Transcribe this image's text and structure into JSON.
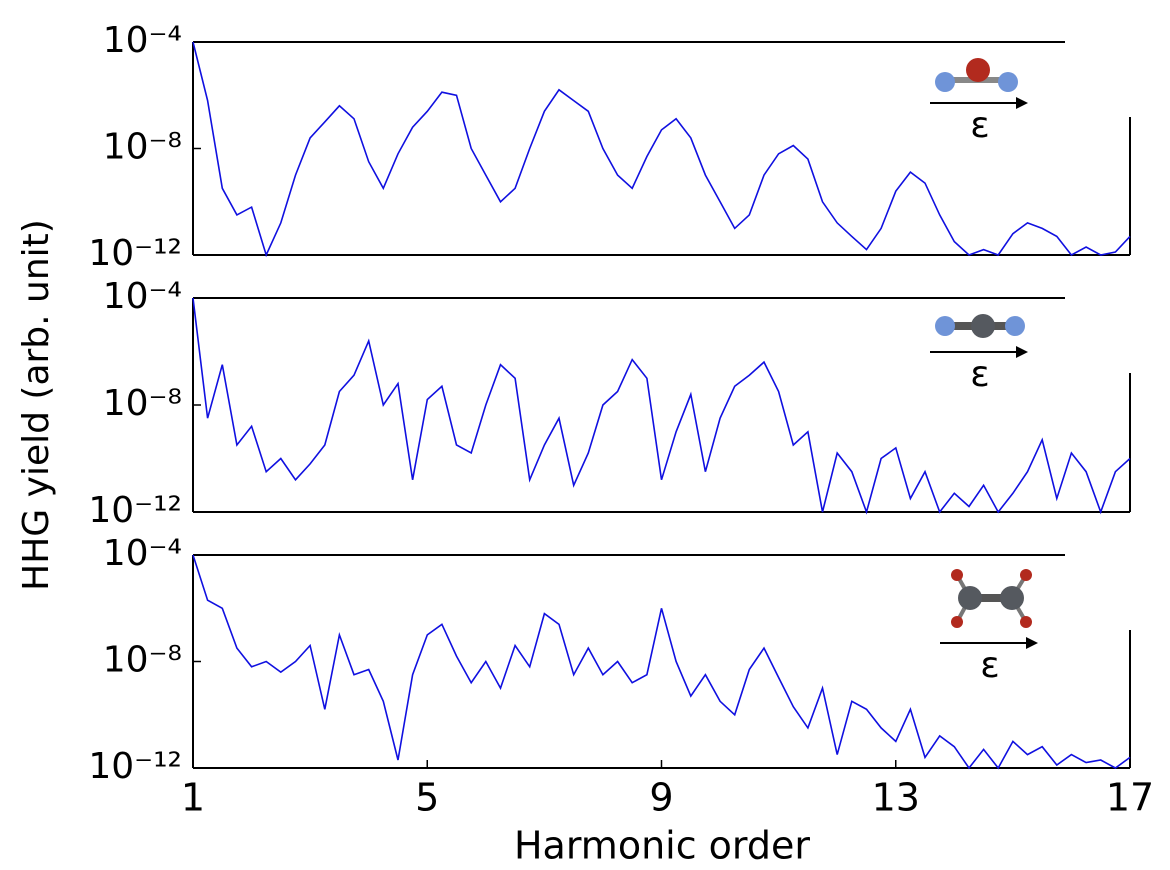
{
  "chart_data": [
    {
      "type": "line",
      "log_y": true,
      "color": "#1010e0",
      "annotation": "ε",
      "xlim": [
        1,
        17
      ],
      "ylim": [
        1e-12,
        0.0001
      ],
      "yticks": [
        {
          "value": 0.0001,
          "label": "10⁻⁴"
        },
        {
          "value": 1e-08,
          "label": "10⁻⁸"
        },
        {
          "value": 1e-12,
          "label": "10⁻¹²"
        }
      ],
      "x": [
        1,
        1.25,
        1.5,
        1.75,
        2,
        2.25,
        2.5,
        2.75,
        3,
        3.25,
        3.5,
        3.75,
        4,
        4.25,
        4.5,
        4.75,
        5,
        5.25,
        5.5,
        5.75,
        6,
        6.25,
        6.5,
        6.75,
        7,
        7.25,
        7.5,
        7.75,
        8,
        8.25,
        8.5,
        8.75,
        9,
        9.25,
        9.5,
        9.75,
        10,
        10.25,
        10.5,
        10.75,
        11,
        11.25,
        11.5,
        11.75,
        12,
        12.25,
        12.5,
        12.75,
        13,
        13.25,
        13.5,
        13.75,
        14,
        14.25,
        14.5,
        14.75,
        15,
        15.25,
        15.5,
        15.75,
        16,
        16.25,
        16.5,
        16.75,
        17
      ],
      "values": [
        0.0001,
        6.3e-07,
        3.2e-10,
        3.2e-11,
        6.3e-11,
        1e-12,
        1.6e-11,
        1e-09,
        2.5e-08,
        1e-07,
        4e-07,
        1.3e-07,
        3.2e-09,
        3.2e-10,
        6.3e-09,
        6.3e-08,
        2.5e-07,
        1.3e-06,
        1e-06,
        1e-08,
        1e-09,
        1e-10,
        3.2e-10,
        1e-08,
        2.5e-07,
        1.6e-06,
        6.3e-07,
        2.5e-07,
        1e-08,
        1e-09,
        3.2e-10,
        5e-09,
        5e-08,
        1.3e-07,
        2.5e-08,
        1e-09,
        1e-10,
        1e-11,
        3.2e-11,
        1e-09,
        6.3e-09,
        1.3e-08,
        4e-09,
        1e-10,
        1.6e-11,
        5e-12,
        1.6e-12,
        1e-11,
        2.5e-10,
        1.3e-09,
        5e-10,
        3.2e-11,
        3.2e-12,
        1e-12,
        1.6e-12,
        1e-12,
        6.3e-12,
        1.6e-11,
        1e-11,
        5e-12,
        1e-12,
        2e-12,
        1e-12,
        1.3e-12,
        5e-12
      ]
    },
    {
      "type": "line",
      "log_y": true,
      "color": "#1010e0",
      "annotation": "ε",
      "ylabel": "HHG yield (arb. unit)",
      "xlim": [
        1,
        17
      ],
      "ylim": [
        1e-12,
        0.0001
      ],
      "yticks": [
        {
          "value": 0.0001,
          "label": "10⁻⁴"
        },
        {
          "value": 1e-08,
          "label": "10⁻⁸"
        },
        {
          "value": 1e-12,
          "label": "10⁻¹²"
        }
      ],
      "x": [
        1,
        1.25,
        1.5,
        1.75,
        2,
        2.25,
        2.5,
        2.75,
        3,
        3.25,
        3.5,
        3.75,
        4,
        4.25,
        4.5,
        4.75,
        5,
        5.25,
        5.5,
        5.75,
        6,
        6.25,
        6.5,
        6.75,
        7,
        7.25,
        7.5,
        7.75,
        8,
        8.25,
        8.5,
        8.75,
        9,
        9.25,
        9.5,
        9.75,
        10,
        10.25,
        10.5,
        10.75,
        11,
        11.25,
        11.5,
        11.75,
        12,
        12.25,
        12.5,
        12.75,
        13,
        13.25,
        13.5,
        13.75,
        14,
        14.25,
        14.5,
        14.75,
        15,
        15.25,
        15.5,
        15.75,
        16,
        16.25,
        16.5,
        16.75,
        17
      ],
      "values": [
        0.0001,
        3.2e-09,
        3.2e-07,
        3.2e-10,
        1.6e-09,
        3.2e-11,
        1e-10,
        1.6e-11,
        6.3e-11,
        3.2e-10,
        3.2e-08,
        1.3e-07,
        2.5e-06,
        1e-08,
        6.3e-08,
        1.6e-11,
        1.6e-08,
        5e-08,
        3.2e-10,
        1.6e-10,
        1e-08,
        3.2e-07,
        1e-07,
        1.6e-11,
        3.2e-10,
        3.2e-09,
        1e-11,
        1.6e-10,
        1e-08,
        3.2e-08,
        5e-07,
        1e-07,
        1.6e-11,
        1e-09,
        2.5e-08,
        3.2e-11,
        3.2e-09,
        5e-08,
        1.3e-07,
        4e-07,
        3.2e-08,
        3.2e-10,
        1e-09,
        1e-12,
        1.6e-10,
        3.2e-11,
        1e-12,
        1e-10,
        2.5e-10,
        3.2e-12,
        3.2e-11,
        1e-12,
        5e-12,
        1.6e-12,
        1e-11,
        1e-12,
        5e-12,
        3.2e-11,
        5e-10,
        3.2e-12,
        1.6e-10,
        3.2e-11,
        1e-12,
        3.2e-11,
        1e-10
      ]
    },
    {
      "type": "line",
      "log_y": true,
      "color": "#1010e0",
      "annotation": "ε",
      "xlabel": "Harmonic order",
      "xlim": [
        1,
        17
      ],
      "ylim": [
        1e-12,
        0.0001
      ],
      "xticks": [
        1,
        5,
        9,
        13,
        17
      ],
      "yticks": [
        {
          "value": 0.0001,
          "label": "10⁻⁴"
        },
        {
          "value": 1e-08,
          "label": "10⁻⁸"
        },
        {
          "value": 1e-12,
          "label": "10⁻¹²"
        }
      ],
      "x": [
        1,
        1.25,
        1.5,
        1.75,
        2,
        2.25,
        2.5,
        2.75,
        3,
        3.25,
        3.5,
        3.75,
        4,
        4.25,
        4.5,
        4.75,
        5,
        5.25,
        5.5,
        5.75,
        6,
        6.25,
        6.5,
        6.75,
        7,
        7.25,
        7.5,
        7.75,
        8,
        8.25,
        8.5,
        8.75,
        9,
        9.25,
        9.5,
        9.75,
        10,
        10.25,
        10.5,
        10.75,
        11,
        11.25,
        11.5,
        11.75,
        12,
        12.25,
        12.5,
        12.75,
        13,
        13.25,
        13.5,
        13.75,
        14,
        14.25,
        14.5,
        14.75,
        15,
        15.25,
        15.5,
        15.75,
        16,
        16.25,
        16.5,
        16.75,
        17
      ],
      "values": [
        0.0001,
        2e-06,
        1e-06,
        3.2e-08,
        6.3e-09,
        1e-08,
        4e-09,
        1e-08,
        4e-08,
        1.6e-10,
        1e-07,
        3.2e-09,
        5e-09,
        3.2e-10,
        2e-12,
        3.2e-09,
        1e-07,
        2.5e-07,
        1.6e-08,
        1.6e-09,
        1e-08,
        1e-09,
        4e-08,
        6.3e-09,
        6.3e-07,
        2.5e-07,
        3.2e-09,
        3.2e-08,
        3.2e-09,
        1e-08,
        1.6e-09,
        3.2e-09,
        1e-06,
        1e-08,
        5e-10,
        3.2e-09,
        3.2e-10,
        1e-10,
        5e-09,
        3.2e-08,
        2.5e-09,
        2e-10,
        3.2e-11,
        1e-09,
        3.2e-12,
        3.2e-10,
        1.6e-10,
        3.2e-11,
        1e-11,
        1.6e-10,
        2.5e-12,
        1.6e-11,
        6.3e-12,
        1e-12,
        5e-12,
        1e-12,
        1e-11,
        3.2e-12,
        6.3e-12,
        1.3e-12,
        3.2e-12,
        1.6e-12,
        2e-12,
        1e-12,
        2.5e-12
      ]
    }
  ]
}
